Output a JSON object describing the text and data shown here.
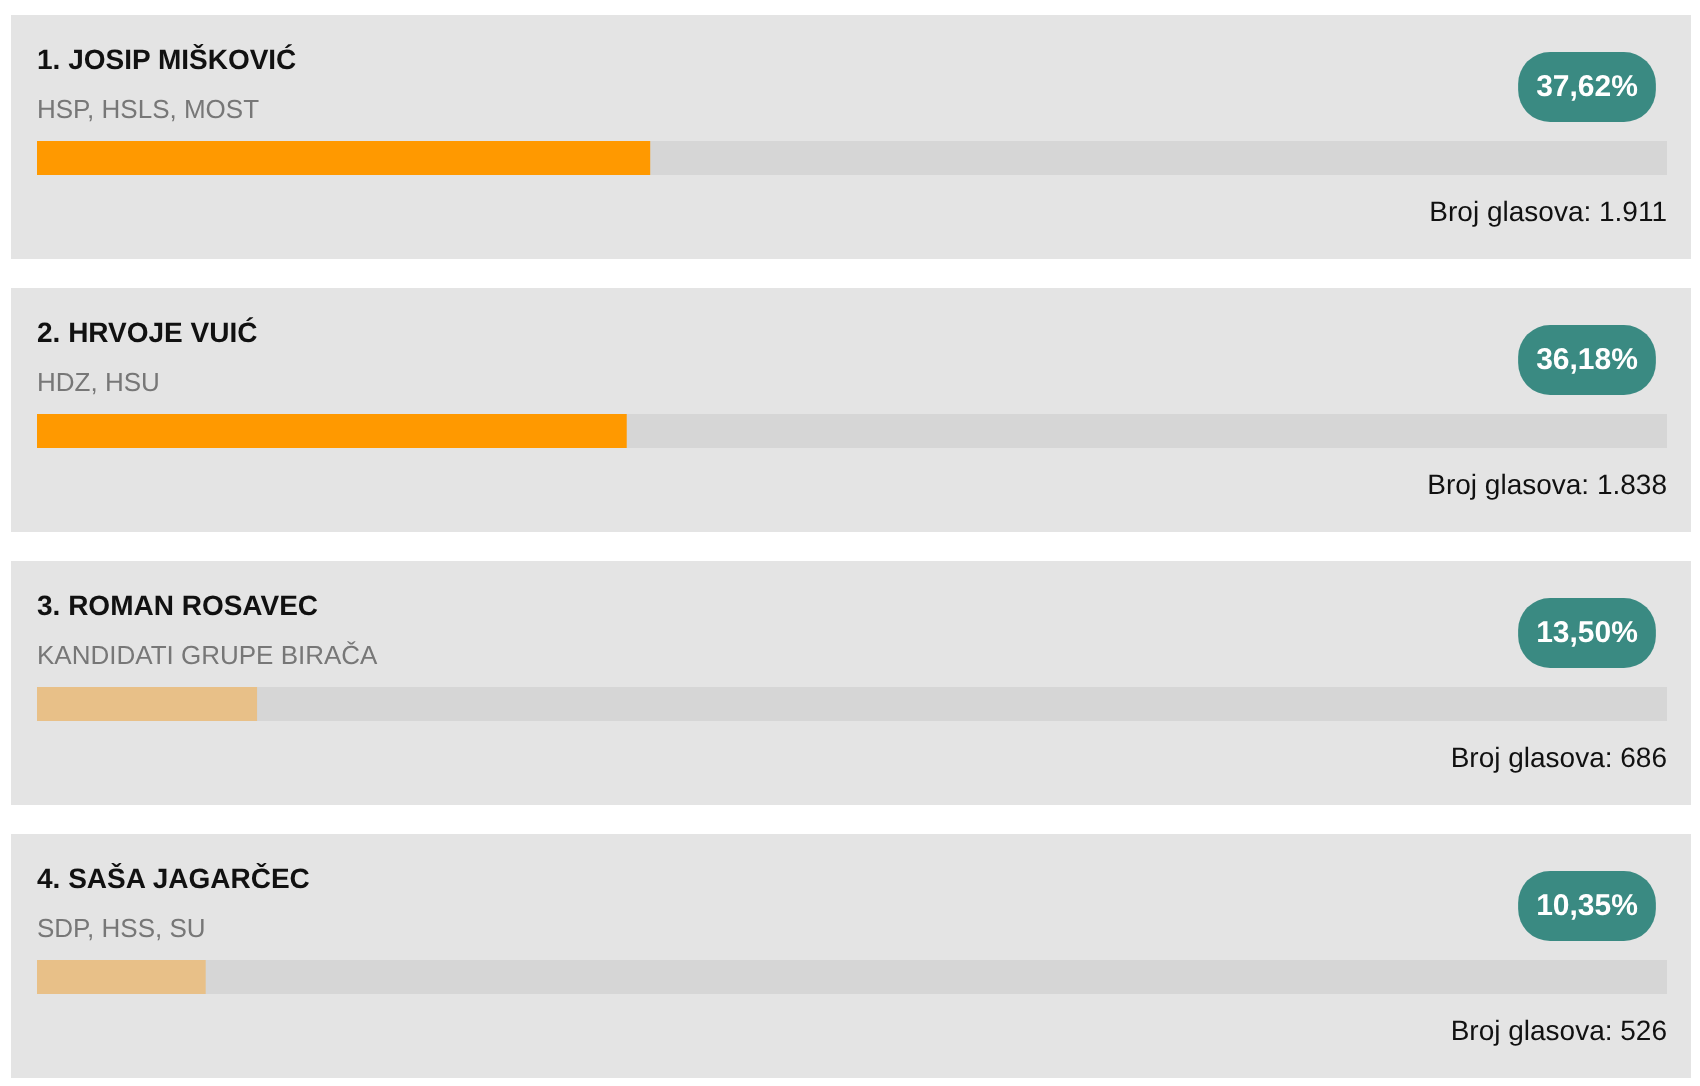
{
  "chart_data": {
    "type": "bar",
    "orientation": "horizontal",
    "categories": [
      "1. JOSIP MIŠKOVIĆ",
      "2. HRVOJE VUIĆ",
      "3. ROMAN ROSAVEC",
      "4. SAŠA JAGARČEC"
    ],
    "values": [
      37.62,
      36.18,
      13.5,
      10.35
    ],
    "colors": [
      "#ff9900",
      "#ff9900",
      "#e8c088",
      "#e8c088"
    ],
    "value_labels": [
      "37,62%",
      "36,18%",
      "13,50%",
      "10,35%"
    ],
    "xlim": [
      0,
      100
    ],
    "annotations": [
      "HSP, HSLS, MOST",
      "HDZ, HSU",
      "KANDIDATI GRUPE BIRAČA",
      "SDP, HSS, SU",
      "Broj glasova: 1.911",
      "Broj glasova: 1.838",
      "Broj glasova: 686",
      "Broj glasova: 526"
    ]
  }
}
